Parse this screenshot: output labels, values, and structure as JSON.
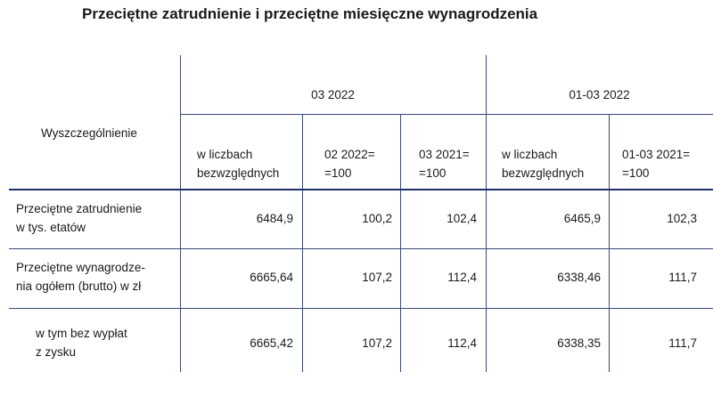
{
  "title": "Przeciętne zatrudnienie i przeciętne miesięczne wynagrodzenia",
  "header": {
    "row_label": "Wyszczególnienie",
    "group1": "03 2022",
    "group2": "01-03 2022",
    "cols": [
      [
        "w liczbach",
        "bezwzględnych"
      ],
      [
        "02 2022=",
        "=100"
      ],
      [
        "03 2021=",
        "=100"
      ],
      [
        "w liczbach",
        "bezwzględnych"
      ],
      [
        "01-03 2021=",
        "=100"
      ]
    ]
  },
  "rows": [
    {
      "label": [
        "Przeciętne zatrudnienie",
        "w tys. etatów"
      ],
      "values": [
        "6484,9",
        "100,2",
        "102,4",
        "6465,9",
        "102,3"
      ]
    },
    {
      "label": [
        "Przeciętne wynagrodze-",
        "nia ogółem (brutto) w zł"
      ],
      "values": [
        "6665,64",
        "107,2",
        "112,4",
        "6338,46",
        "111,7"
      ]
    },
    {
      "label": [
        "w tym bez wypłat",
        "z zysku"
      ],
      "values": [
        "6665,42",
        "107,2",
        "112,4",
        "6338,35",
        "111,7"
      ]
    }
  ]
}
